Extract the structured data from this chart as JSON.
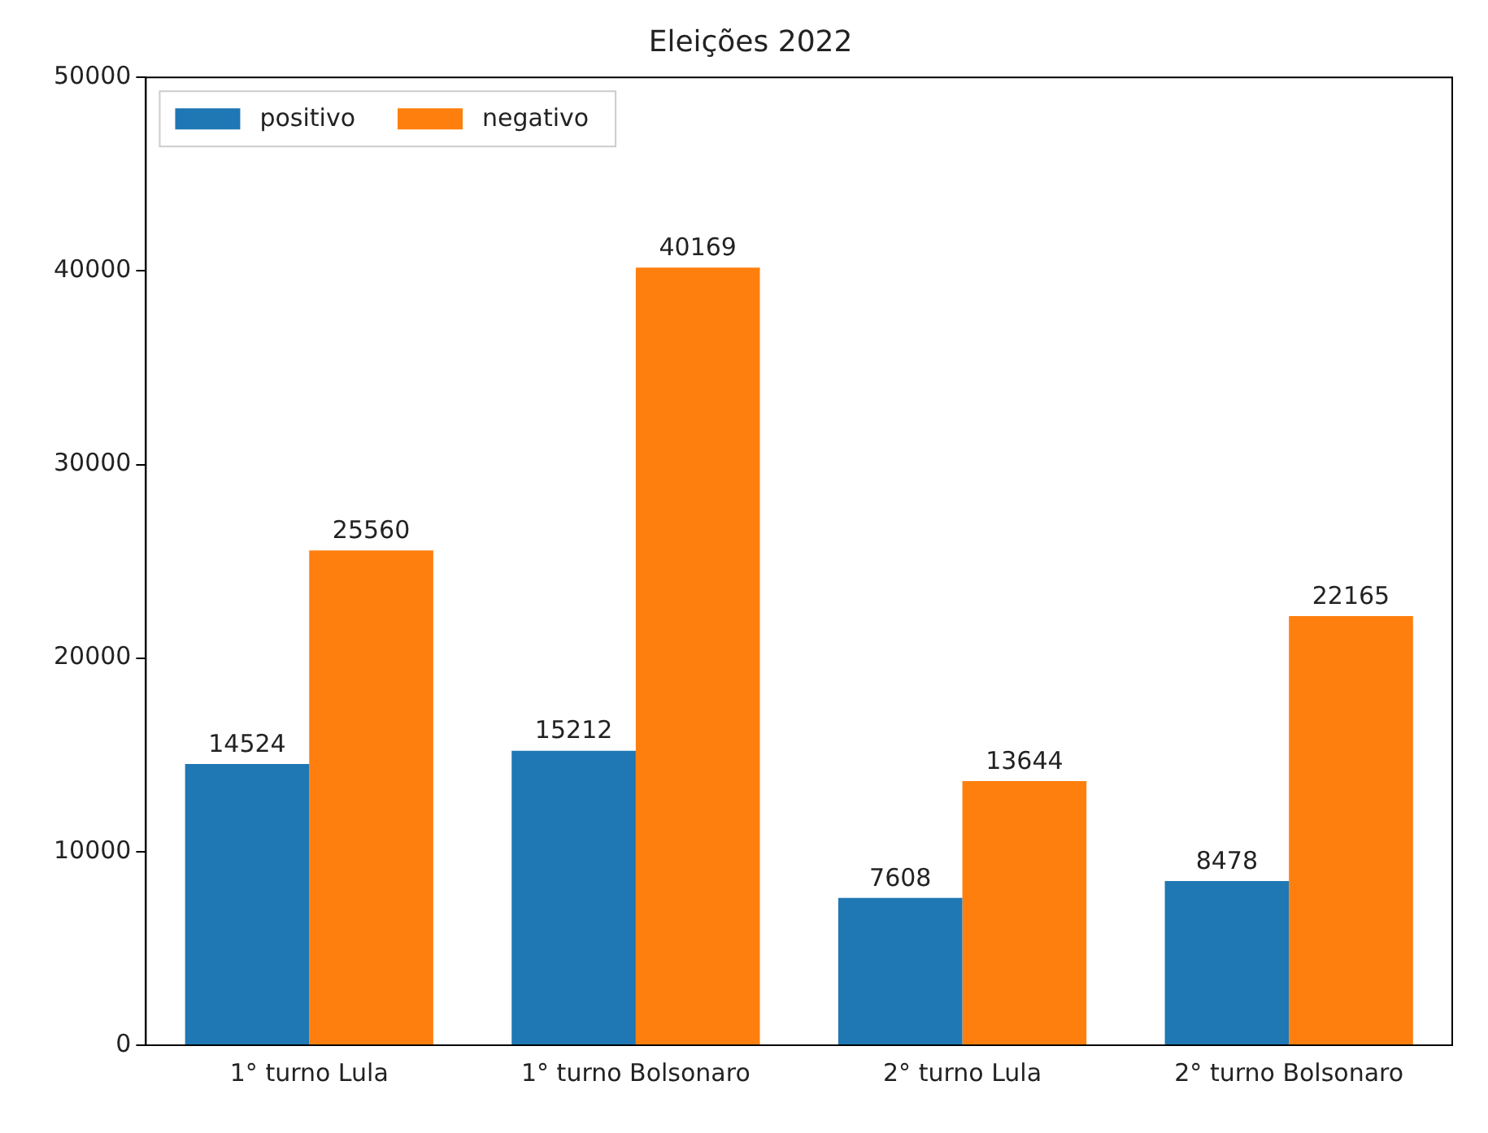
{
  "chart_data": {
    "type": "bar",
    "title": "Eleições 2022",
    "categories": [
      "1° turno Lula",
      "1° turno Bolsonaro",
      "2° turno Lula",
      "2° turno Bolsonaro"
    ],
    "series": [
      {
        "name": "positivo",
        "color": "#1f77b4",
        "values": [
          14524,
          15212,
          7608,
          8478
        ]
      },
      {
        "name": "negativo",
        "color": "#ff7f0e",
        "values": [
          25560,
          40169,
          13644,
          22165
        ]
      }
    ],
    "ylim": [
      0,
      50000
    ],
    "yticks": [
      0,
      10000,
      20000,
      30000,
      40000,
      50000
    ],
    "grid": false,
    "legend": "top left",
    "data_labels": true
  }
}
